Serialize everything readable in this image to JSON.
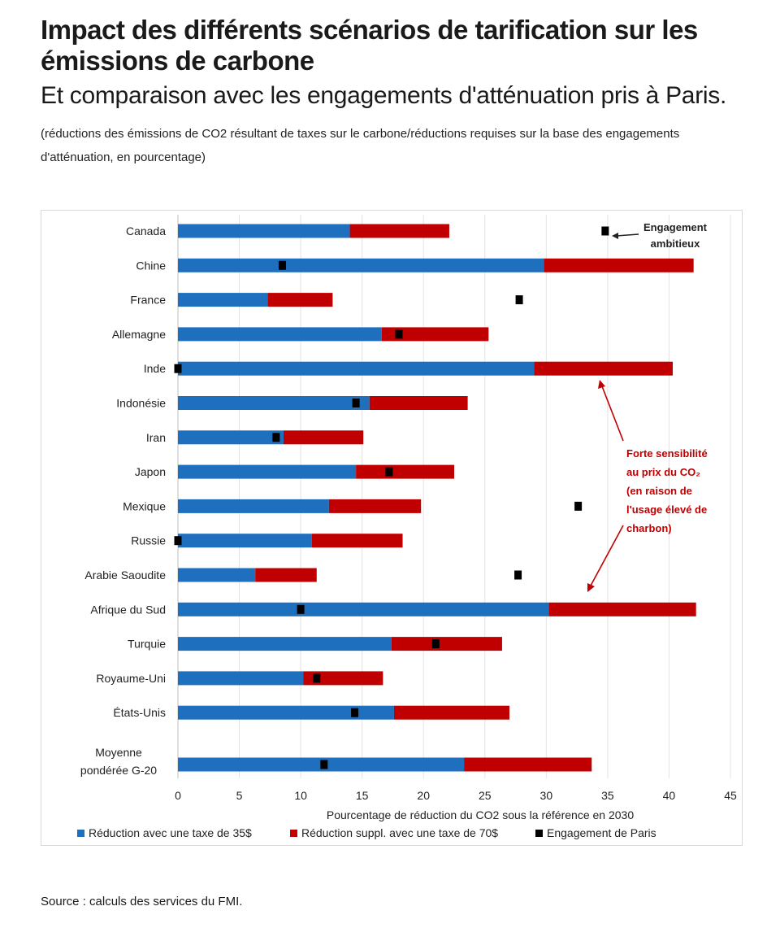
{
  "header": {
    "title": "Impact des différents scénarios de tarification sur les émissions de carbone",
    "subtitle": "Et comparaison avec les engagements d'atténuation pris à Paris.",
    "note": "(réductions des émissions de CO2 résultant de taxes sur le carbone/réductions requises sur la base des engagements d'atténuation, en pourcentage)"
  },
  "footer": {
    "source": "Source : calculs des services du FMI."
  },
  "colors": {
    "tax35": "#1f6fbf",
    "tax70": "#c00000",
    "paris": "#000000",
    "annotation": "#c00000"
  },
  "chart_data": {
    "type": "bar",
    "orientation": "horizontal",
    "stacked": true,
    "categories": [
      "Canada",
      "Chine",
      "France",
      "Allemagne",
      "Inde",
      "Indonésie",
      "Iran",
      "Japon",
      "Mexique",
      "Russie",
      "Arabie Saoudite",
      "Afrique du Sud",
      "Turquie",
      "Royaume-Uni",
      "États-Unis",
      "Moyenne pondérée G-20"
    ],
    "series": [
      {
        "name": "Réduction avec une taxe de 35$",
        "color": "#1f6fbf",
        "values": [
          14.0,
          29.8,
          7.3,
          16.6,
          29.0,
          15.6,
          8.6,
          14.5,
          12.3,
          10.9,
          6.3,
          30.2,
          17.4,
          10.2,
          17.6,
          23.3
        ]
      },
      {
        "name": "Réduction suppl. avec une taxe de 70$",
        "color": "#c00000",
        "values": [
          8.1,
          12.2,
          5.3,
          8.7,
          11.3,
          8.0,
          6.5,
          8.0,
          7.5,
          7.4,
          5.0,
          12.0,
          9.0,
          6.5,
          9.4,
          10.4
        ]
      }
    ],
    "markers": {
      "name": "Engagement de Paris",
      "color": "#000000",
      "values": [
        34.8,
        8.5,
        27.8,
        18.0,
        0,
        14.5,
        8.0,
        17.2,
        32.6,
        0,
        27.7,
        10.0,
        21.0,
        11.3,
        14.4,
        11.9
      ]
    },
    "xlabel": "Pourcentage de réduction du CO2 sous la référence en 2030",
    "xlim": [
      0,
      45
    ],
    "xticks": [
      "0",
      "5",
      "10",
      "15",
      "20",
      "25",
      "30",
      "35",
      "40",
      "45"
    ],
    "grid": "vertical",
    "legend_position": "bottom",
    "annotations": {
      "ambitious": {
        "lines": [
          "Engagement",
          "ambitieux"
        ]
      },
      "coal": {
        "lines": [
          "Forte sensibilité",
          "au prix du CO₂",
          "(en raison de",
          "l'usage élevé de",
          "charbon)"
        ]
      }
    }
  }
}
